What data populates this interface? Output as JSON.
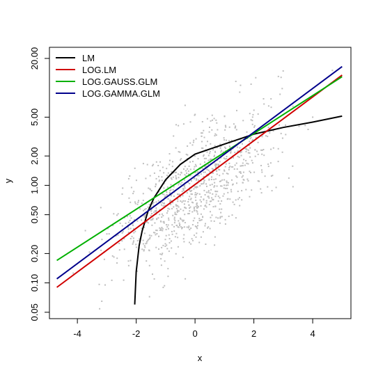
{
  "chart_data": {
    "type": "scatter",
    "title": "",
    "xlabel": "x",
    "ylabel": "y",
    "x_scale": "linear",
    "y_scale": "log",
    "xlim": [
      -4.95,
      5.3
    ],
    "ylim": [
      0.043,
      26
    ],
    "x_ticks": [
      -4,
      -2,
      0,
      2,
      4
    ],
    "x_tick_labels": [
      "-4",
      "-2",
      "0",
      "2",
      "4"
    ],
    "y_ticks": [
      0.05,
      0.1,
      0.2,
      0.5,
      1,
      2,
      5,
      20
    ],
    "y_tick_labels": [
      "0.05",
      "0.10",
      "0.20",
      "0.50",
      "1.00",
      "2.00",
      "5.00",
      "20.00"
    ],
    "grid": false,
    "legend_position": "top-left",
    "point_color": "#bebebe",
    "point_count": 1000,
    "series": [
      {
        "name": "LM",
        "color": "#000000",
        "x": [
          -2.05,
          -2.0,
          -1.9,
          -1.8,
          -1.6,
          -1.4,
          -1.0,
          -0.5,
          0,
          1,
          2,
          3,
          4,
          5
        ],
        "y": [
          0.06,
          0.13,
          0.24,
          0.34,
          0.54,
          0.74,
          1.14,
          1.64,
          2.09,
          2.65,
          3.35,
          3.92,
          4.45,
          5.12
        ]
      },
      {
        "name": "LOG.LM",
        "color": "#d00000",
        "x": [
          -4.7,
          5.0
        ],
        "y": [
          0.09,
          13.5
        ]
      },
      {
        "name": "LOG.GAUSS.GLM",
        "color": "#00b000",
        "x": [
          -4.7,
          5.0
        ],
        "y": [
          0.17,
          13.0
        ]
      },
      {
        "name": "LOG.GAMMA.GLM",
        "color": "#00008b",
        "x": [
          -4.7,
          5.0
        ],
        "y": [
          0.11,
          16.5
        ]
      }
    ]
  }
}
